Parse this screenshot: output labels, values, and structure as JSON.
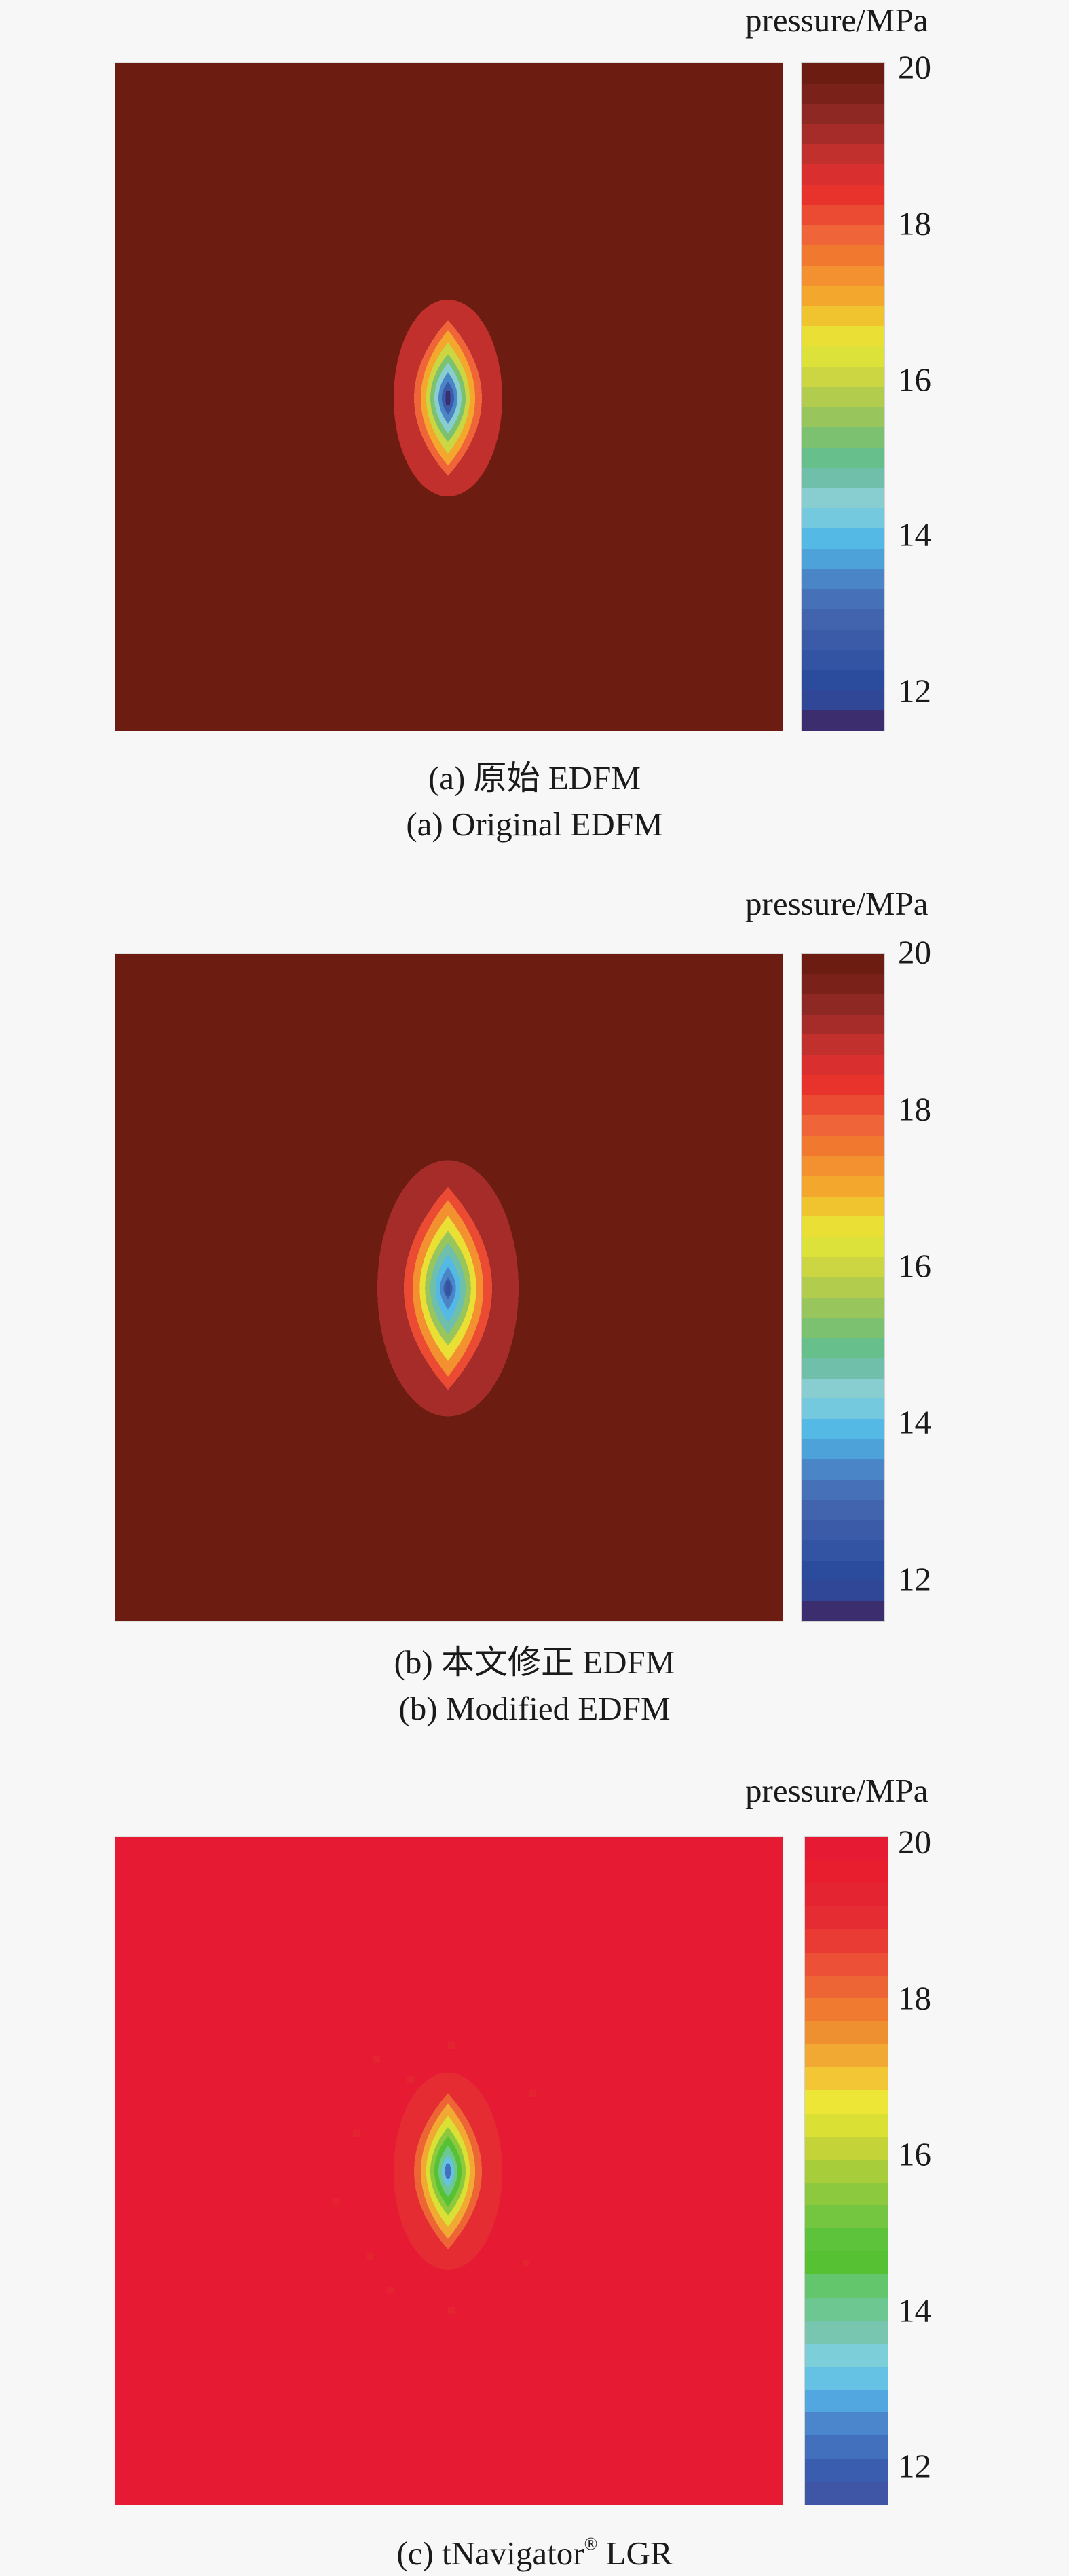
{
  "chart_data": [
    {
      "type": "heatmap",
      "colorbar_label": "pressure/MPa",
      "colorbar_range": [
        11.6,
        20
      ],
      "colorbar_ticks": [
        "20",
        "18",
        "16",
        "14",
        "12"
      ],
      "caption_cn": "(a) 原始 EDFM",
      "caption_en": "(a) Original EDFM",
      "background_pressure": 20,
      "center_pressure": 11.8,
      "colormap": "parula-red",
      "bands": [
        "#3b2d6e",
        "#2f4796",
        "#2b4c9c",
        "#3353a3",
        "#3b5aa8",
        "#4263ae",
        "#4670b8",
        "#4a85c8",
        "#4ea2da",
        "#55b9e6",
        "#74c9de",
        "#88cdd0",
        "#6fbfaa",
        "#67c08c",
        "#7cc170",
        "#98c65d",
        "#b2cc4d",
        "#cbd642",
        "#dde23a",
        "#e9df35",
        "#f0c42f",
        "#f3a72d",
        "#f39030",
        "#f0792f",
        "#f0643a",
        "#ec4b33",
        "#e8332d",
        "#d9302f",
        "#c1302d",
        "#a62c2a",
        "#8d2823",
        "#7a2219",
        "#6c1c10"
      ]
    },
    {
      "type": "heatmap",
      "colorbar_label": "pressure/MPa",
      "colorbar_range": [
        11.6,
        20
      ],
      "colorbar_ticks": [
        "20",
        "18",
        "16",
        "14",
        "12"
      ],
      "caption_cn": "(b) 本文修正 EDFM",
      "caption_en": "(b) Modified EDFM",
      "background_pressure": 20,
      "center_pressure": 12.5,
      "colormap": "parula-red",
      "bands": [
        "#3b2d6e",
        "#2f4796",
        "#2b4c9c",
        "#3353a3",
        "#3b5aa8",
        "#4263ae",
        "#4670b8",
        "#4a85c8",
        "#4ea2da",
        "#55b9e6",
        "#74c9de",
        "#88cdd0",
        "#6fbfaa",
        "#67c08c",
        "#7cc170",
        "#98c65d",
        "#b2cc4d",
        "#cbd642",
        "#dde23a",
        "#e9df35",
        "#f0c42f",
        "#f3a72d",
        "#f39030",
        "#f0792f",
        "#f0643a",
        "#ec4b33",
        "#e8332d",
        "#d9302f",
        "#c1302d",
        "#a62c2a",
        "#8d2823",
        "#7a2219",
        "#6c1c10"
      ]
    },
    {
      "type": "heatmap",
      "colorbar_label": "pressure/MPa",
      "colorbar_range": [
        11.6,
        20
      ],
      "colorbar_ticks": [
        "20",
        "18",
        "16",
        "14",
        "12"
      ],
      "caption_en": "(c) tNavigator",
      "caption_sup": "®",
      "caption_tail": " LGR",
      "background_pressure": 20,
      "center_pressure": 12.3,
      "colormap": "jet-red",
      "bands": [
        "#3f55a6",
        "#3b5db0",
        "#4270bc",
        "#4b86cc",
        "#52a7e0",
        "#66c2e4",
        "#7ccfd8",
        "#78c6b0",
        "#6cc790",
        "#63c66d",
        "#55c133",
        "#5cc33a",
        "#74c540",
        "#8cc93e",
        "#a8cd3b",
        "#c4d438",
        "#dbe035",
        "#ede636",
        "#f2c634",
        "#f1a933",
        "#ef9030",
        "#ef7a30",
        "#ed6534",
        "#ec5036",
        "#e93b34",
        "#e62c33",
        "#e42431",
        "#e81e2f",
        "#e71a34"
      ]
    }
  ]
}
